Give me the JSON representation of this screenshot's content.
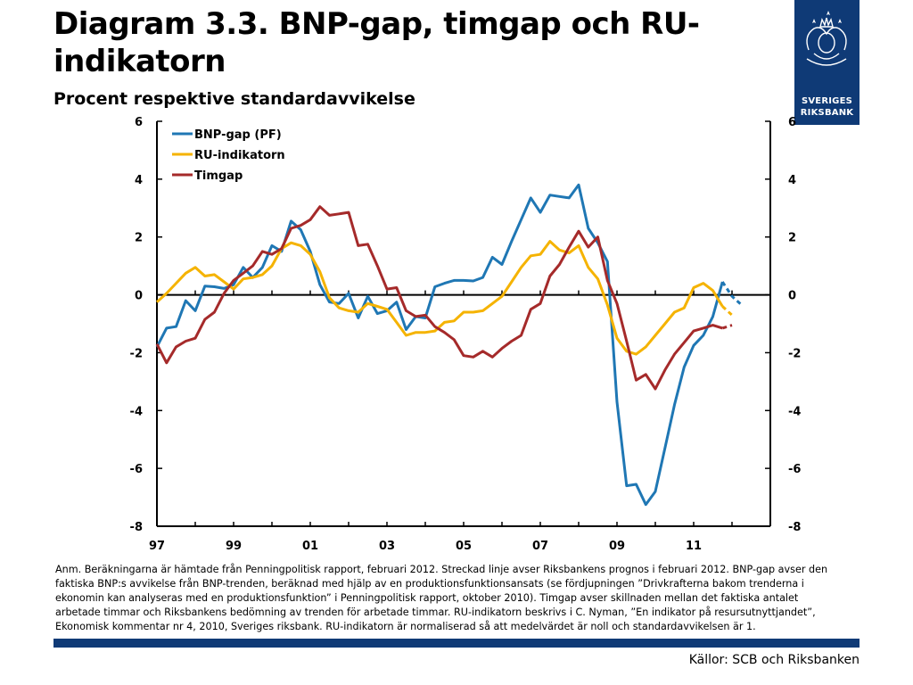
{
  "header": {
    "title": "Diagram 3.3. BNP-gap, timgap och RU-indikatorn",
    "subtitle": "Procent respektive standardavvikelse"
  },
  "logo": {
    "line1": "SVERIGES",
    "line2": "RIKSBANK",
    "icon": "riksbank-crest-icon",
    "color": "#0f3a76"
  },
  "note": "Anm. Beräkningarna är hämtade från Penningpolitisk rapport, februari 2012. Streckad linje avser Riksbankens prognos i februari 2012. BNP-gap avser den faktiska BNP:s avvikelse från BNP-trenden, beräknad med hjälp av en produktionsfunktionsansats (se fördjupningen ”Drivkrafterna bakom trenderna i ekonomin kan analyseras med en produktionsfunktion” i Penningpolitisk rapport, oktober 2010). Timgap avser skillnaden mellan det faktiska antalet arbetade timmar och Riksbankens bedömning av trenden för arbetade timmar. RU-indikatorn beskrivs i C. Nyman, ”En indikator på resursutnyttjandet”, Ekonomisk kommentar nr 4, 2010, Sveriges riksbank. RU-indikatorn är normaliserad så att medelvärdet är noll och standardavvikelsen är 1.",
  "source": "Källor: SCB och Riksbanken",
  "chart_data": {
    "type": "line",
    "x_start": 1997,
    "x_step": 0.25,
    "xlim": [
      1997,
      2013
    ],
    "ylim": [
      -8,
      6
    ],
    "yticks": [
      "-8",
      "-6",
      "-4",
      "-2",
      "0",
      "2",
      "4",
      "6"
    ],
    "xtick_labels": [
      "97",
      "99",
      "01",
      "03",
      "05",
      "07",
      "09",
      "11"
    ],
    "xtick_values": [
      1997,
      1999,
      2001,
      2003,
      2005,
      2007,
      2009,
      2011
    ],
    "legend_position": "top-left",
    "dashed_from": 2011.75,
    "series": [
      {
        "name": "BNP-gap (PF)",
        "color": "#1f77b4",
        "values": [
          -1.8,
          -1.15,
          -1.1,
          -0.2,
          -0.55,
          0.3,
          0.28,
          0.22,
          0.35,
          0.95,
          0.6,
          0.95,
          1.7,
          1.5,
          2.55,
          2.25,
          1.5,
          0.35,
          -0.25,
          -0.3,
          0.05,
          -0.8,
          -0.05,
          -0.65,
          -0.55,
          -0.25,
          -1.2,
          -0.75,
          -0.8,
          0.28,
          0.4,
          0.5,
          0.5,
          0.48,
          0.6,
          1.3,
          1.05,
          1.85,
          2.6,
          3.35,
          2.85,
          3.45,
          3.4,
          3.35,
          3.8,
          2.3,
          1.8,
          1.15,
          -3.7,
          -6.6,
          -6.55,
          -7.25,
          -6.8,
          -5.3,
          -3.8,
          -2.5,
          -1.75,
          -1.4,
          -0.75,
          0.45,
          -0.05,
          -0.35
        ]
      },
      {
        "name": "RU-indikatorn",
        "color": "#f5b300",
        "values": [
          -0.25,
          0.05,
          0.4,
          0.75,
          0.95,
          0.65,
          0.7,
          0.45,
          0.2,
          0.55,
          0.6,
          0.7,
          1.0,
          1.6,
          1.8,
          1.7,
          1.4,
          0.8,
          -0.1,
          -0.45,
          -0.55,
          -0.6,
          -0.3,
          -0.4,
          -0.5,
          -0.95,
          -1.4,
          -1.3,
          -1.3,
          -1.25,
          -0.95,
          -0.9,
          -0.6,
          -0.6,
          -0.55,
          -0.3,
          -0.05,
          0.45,
          0.95,
          1.35,
          1.4,
          1.85,
          1.55,
          1.45,
          1.7,
          0.95,
          0.55,
          -0.35,
          -1.5,
          -1.95,
          -2.05,
          -1.8,
          -1.4,
          -1.0,
          -0.6,
          -0.45,
          0.25,
          0.4,
          0.15,
          -0.4,
          -0.7
        ]
      },
      {
        "name": "Timgap",
        "color": "#a52a2a",
        "values": [
          -1.7,
          -2.35,
          -1.8,
          -1.6,
          -1.5,
          -0.85,
          -0.6,
          0.05,
          0.5,
          0.75,
          1.0,
          1.5,
          1.4,
          1.6,
          2.3,
          2.4,
          2.6,
          3.05,
          2.75,
          2.8,
          2.85,
          1.7,
          1.75,
          1.0,
          0.2,
          0.25,
          -0.55,
          -0.75,
          -0.7,
          -1.1,
          -1.3,
          -1.55,
          -2.1,
          -2.15,
          -1.95,
          -2.15,
          -1.85,
          -1.6,
          -1.4,
          -0.5,
          -0.3,
          0.65,
          1.05,
          1.65,
          2.2,
          1.65,
          2.0,
          0.5,
          -0.3,
          -1.6,
          -2.95,
          -2.75,
          -3.25,
          -2.6,
          -2.05,
          -1.65,
          -1.25,
          -1.15,
          -1.05,
          -1.15,
          -1.05
        ]
      }
    ]
  }
}
